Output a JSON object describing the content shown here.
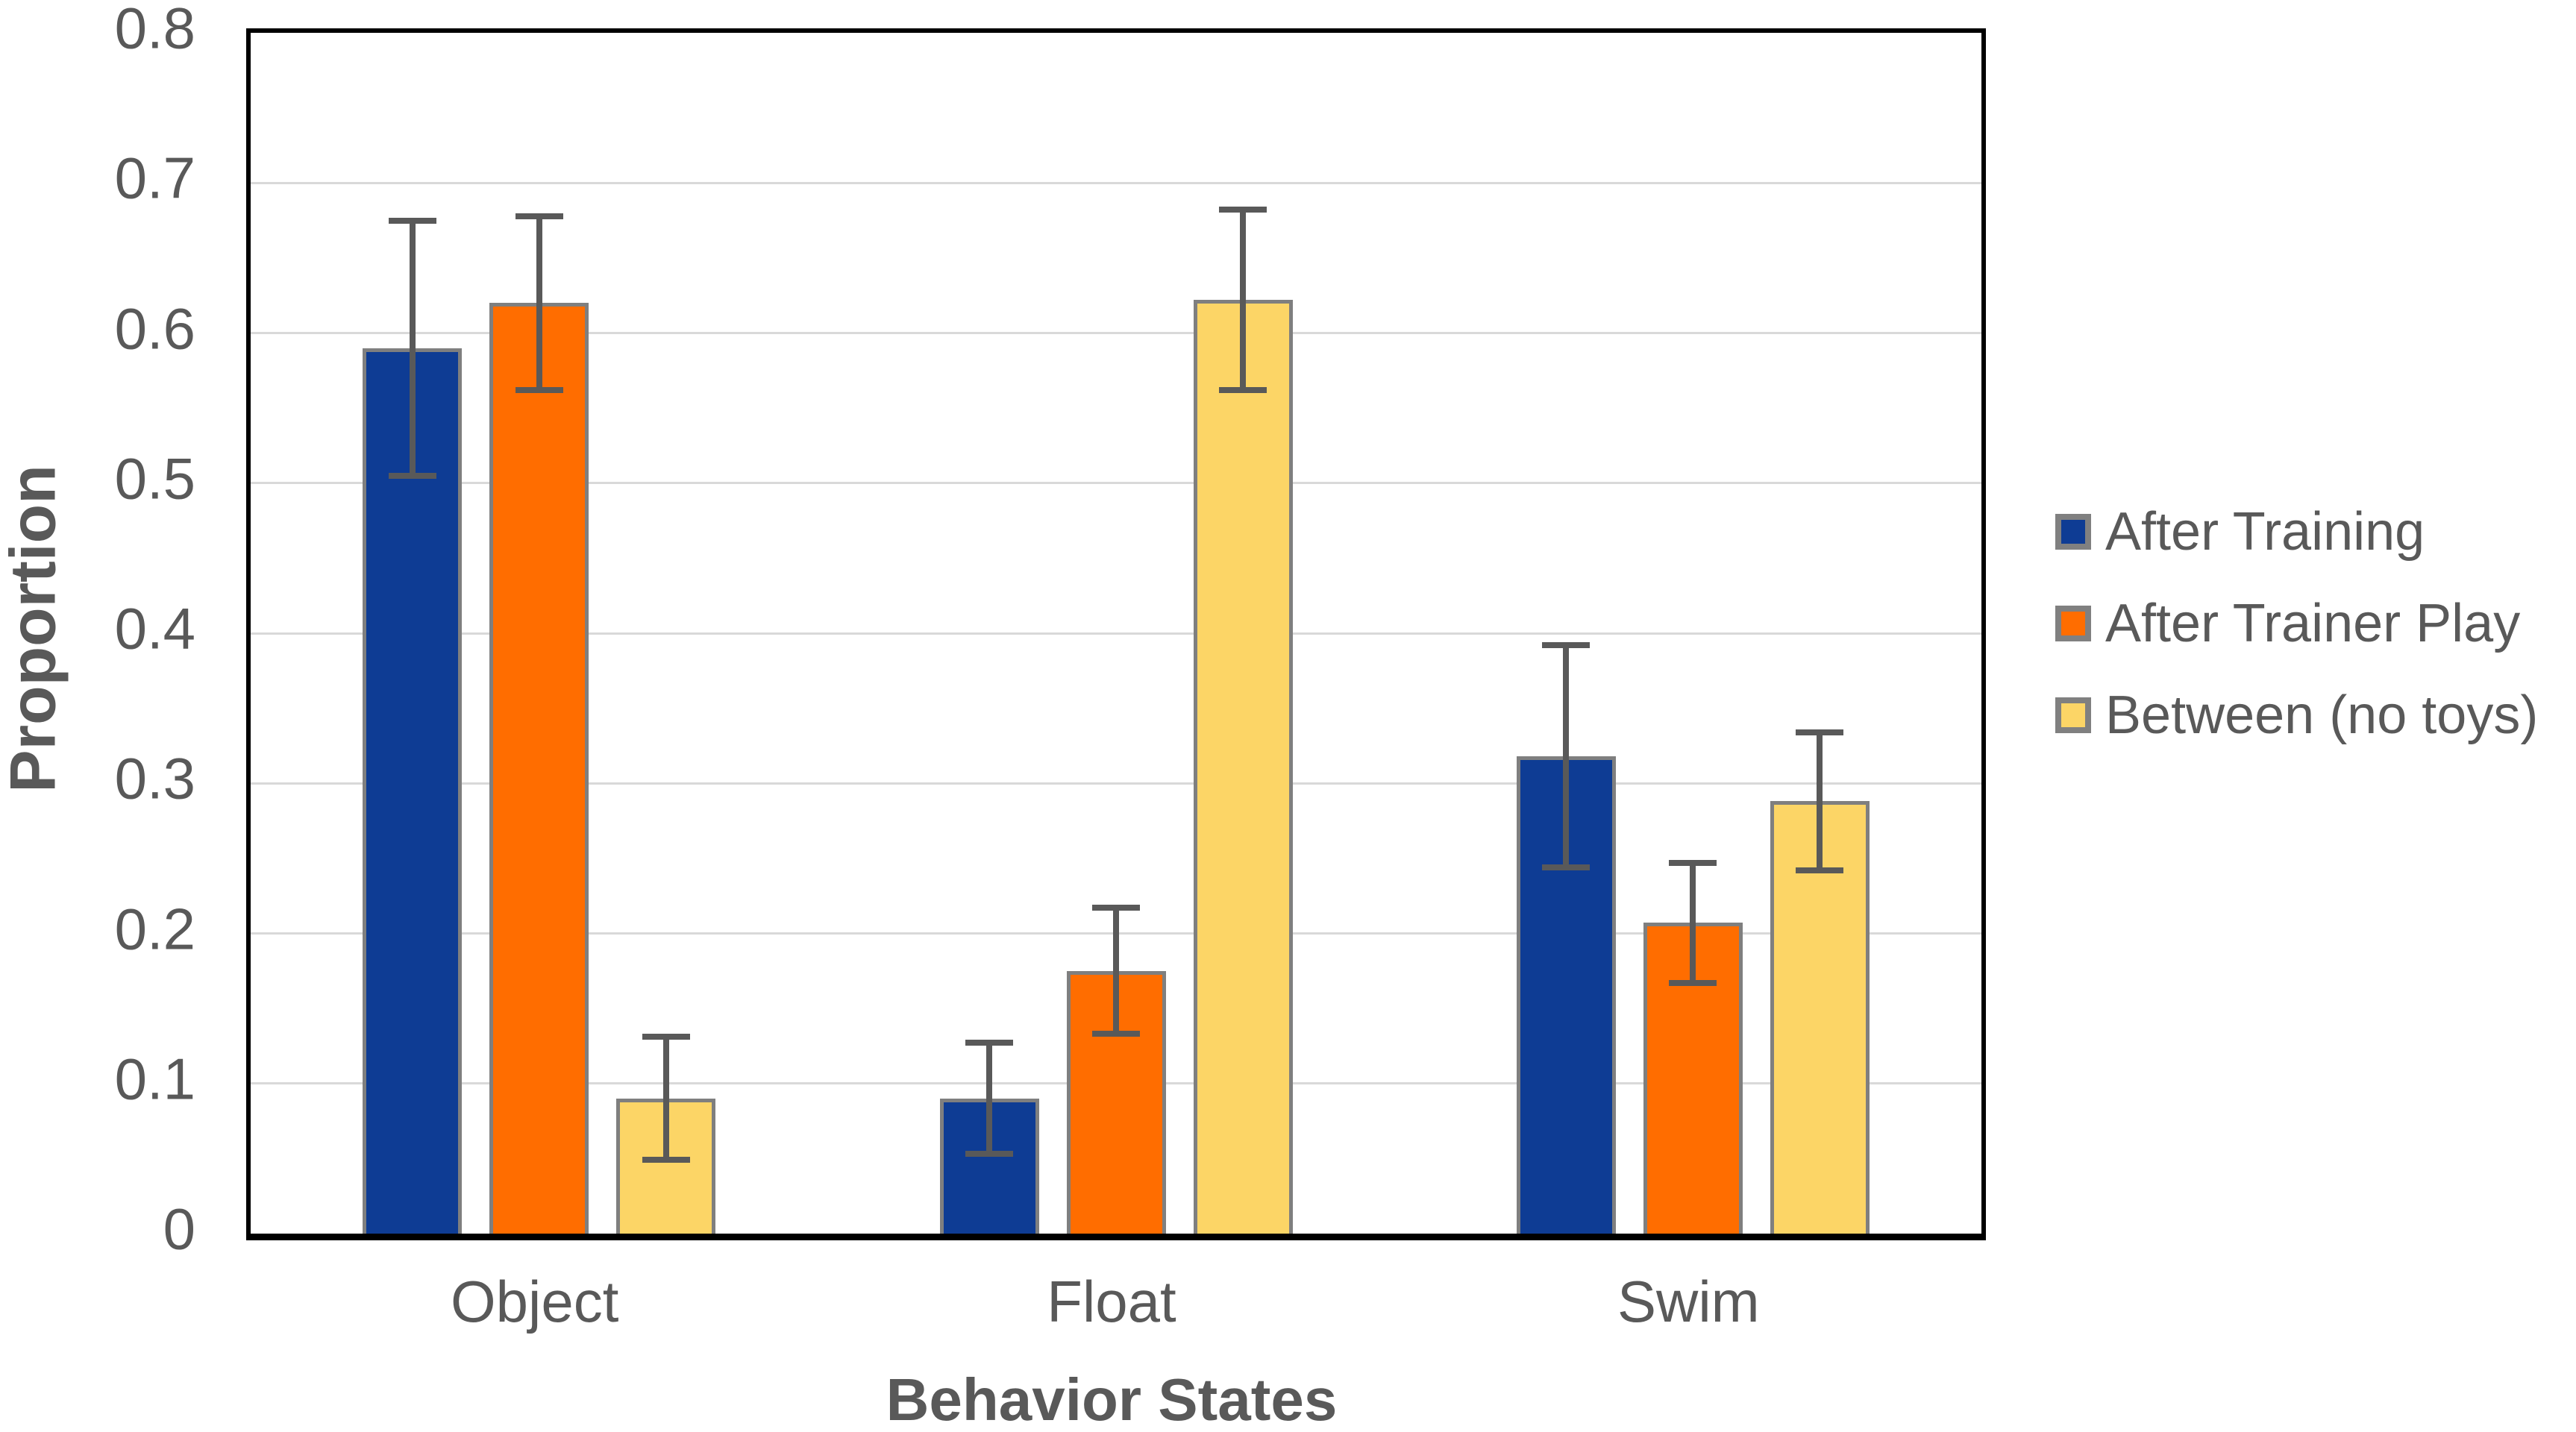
{
  "chart_data": {
    "type": "bar",
    "title": "",
    "xlabel": "Behavior States",
    "ylabel": "Proportion",
    "categories": [
      "Object",
      "Float",
      "Swim"
    ],
    "series": [
      {
        "name": "After Training",
        "color": "#0e3c94",
        "values": [
          0.59,
          0.09,
          0.318
        ],
        "errors": [
          0.085,
          0.037,
          0.074
        ]
      },
      {
        "name": "After Trainer Play",
        "color": "#ff6d00",
        "values": [
          0.62,
          0.175,
          0.207
        ],
        "errors": [
          0.058,
          0.042,
          0.04
        ]
      },
      {
        "name": "Between (no toys)",
        "color": "#fcd566",
        "values": [
          0.09,
          0.622,
          0.288
        ],
        "errors": [
          0.041,
          0.06,
          0.046
        ]
      }
    ],
    "ylim": [
      0,
      0.8
    ],
    "ytick_labels": [
      "0",
      "0.1",
      "0.2",
      "0.3",
      "0.4",
      "0.5",
      "0.6",
      "0.7",
      "0.8"
    ],
    "grid": true,
    "legend_position": "right",
    "colors": {
      "axis_text": "#595959",
      "gridline": "#d9d9d9",
      "bar_border": "#7f7f7f",
      "error_bar": "#595959",
      "legend_border": "#808080",
      "plot_border": "#000000"
    }
  }
}
